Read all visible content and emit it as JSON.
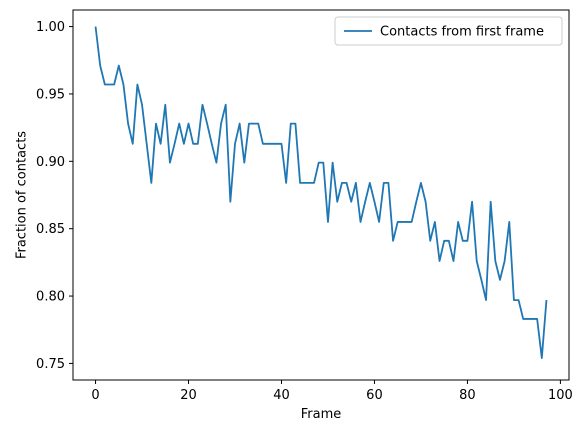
{
  "chart_data": {
    "type": "line",
    "xlabel": "Frame",
    "ylabel": "Fraction of contacts",
    "xlim": [
      -4.85,
      101.85
    ],
    "ylim": [
      0.7377,
      1.0123
    ],
    "xticks": [
      0,
      20,
      40,
      60,
      80,
      100
    ],
    "xtick_labels": [
      "0",
      "20",
      "40",
      "60",
      "80",
      "100"
    ],
    "yticks": [
      0.75,
      0.8,
      0.85,
      0.9,
      0.95,
      1.0
    ],
    "ytick_labels": [
      "0.75",
      "0.80",
      "0.85",
      "0.90",
      "0.95",
      "1.00"
    ],
    "grid": false,
    "legend_position": "top-right",
    "line_color": "#1f77b4",
    "series": [
      {
        "name": "Contacts from first frame",
        "x": [
          0,
          1,
          2,
          3,
          4,
          5,
          6,
          7,
          8,
          9,
          10,
          11,
          12,
          13,
          14,
          15,
          16,
          17,
          18,
          19,
          20,
          21,
          22,
          23,
          24,
          25,
          26,
          27,
          28,
          29,
          30,
          31,
          32,
          33,
          34,
          35,
          36,
          37,
          38,
          39,
          40,
          41,
          42,
          43,
          44,
          45,
          46,
          47,
          48,
          49,
          50,
          51,
          52,
          53,
          54,
          55,
          56,
          57,
          58,
          59,
          60,
          61,
          62,
          63,
          64,
          65,
          66,
          67,
          68,
          69,
          70,
          71,
          72,
          73,
          74,
          75,
          76,
          77,
          78,
          79,
          80,
          81,
          82,
          83,
          84,
          85,
          86,
          87,
          88,
          89,
          90,
          91,
          92,
          93,
          94,
          95,
          96,
          97
        ],
        "values": [
          1.0,
          0.971,
          0.957,
          0.957,
          0.957,
          0.971,
          0.957,
          0.928,
          0.913,
          0.957,
          0.942,
          0.913,
          0.884,
          0.928,
          0.913,
          0.942,
          0.899,
          0.913,
          0.928,
          0.913,
          0.928,
          0.913,
          0.913,
          0.942,
          0.928,
          0.913,
          0.899,
          0.928,
          0.942,
          0.87,
          0.913,
          0.928,
          0.899,
          0.928,
          0.928,
          0.928,
          0.913,
          0.913,
          0.913,
          0.913,
          0.913,
          0.884,
          0.928,
          0.928,
          0.884,
          0.884,
          0.884,
          0.884,
          0.899,
          0.899,
          0.855,
          0.899,
          0.87,
          0.884,
          0.884,
          0.87,
          0.884,
          0.855,
          0.87,
          0.884,
          0.87,
          0.855,
          0.884,
          0.884,
          0.841,
          0.855,
          0.855,
          0.855,
          0.855,
          0.87,
          0.884,
          0.87,
          0.841,
          0.855,
          0.826,
          0.841,
          0.841,
          0.826,
          0.855,
          0.841,
          0.841,
          0.87,
          0.826,
          0.812,
          0.797,
          0.87,
          0.826,
          0.812,
          0.826,
          0.855,
          0.797,
          0.797,
          0.783,
          0.783,
          0.783,
          0.783,
          0.754,
          0.797
        ]
      }
    ]
  }
}
